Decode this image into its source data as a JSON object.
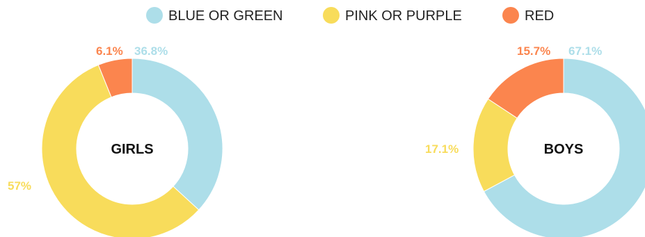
{
  "colors": {
    "blue_or_green": "#ADDEE9",
    "pink_or_purple": "#F8DC5B",
    "red": "#FB854E"
  },
  "legend": [
    {
      "label": "BLUE OR GREEN",
      "color": "#ADDEE9"
    },
    {
      "label": "PINK OR PURPLE",
      "color": "#F8DC5B"
    },
    {
      "label": "RED",
      "color": "#FB854E"
    }
  ],
  "chart_data": [
    {
      "type": "pie",
      "center_label": "GIRLS",
      "categories": [
        "BLUE OR GREEN",
        "PINK OR PURPLE",
        "RED"
      ],
      "values": [
        36.8,
        57,
        6.1
      ],
      "value_labels": [
        "36.8%",
        "57%",
        "6.1%"
      ]
    },
    {
      "type": "pie",
      "center_label": "BOYS",
      "categories": [
        "BLUE OR GREEN",
        "PINK OR PURPLE",
        "RED"
      ],
      "values": [
        67.1,
        17.1,
        15.7
      ],
      "value_labels": [
        "67.1%",
        "17.1%",
        "15.7%"
      ]
    }
  ]
}
